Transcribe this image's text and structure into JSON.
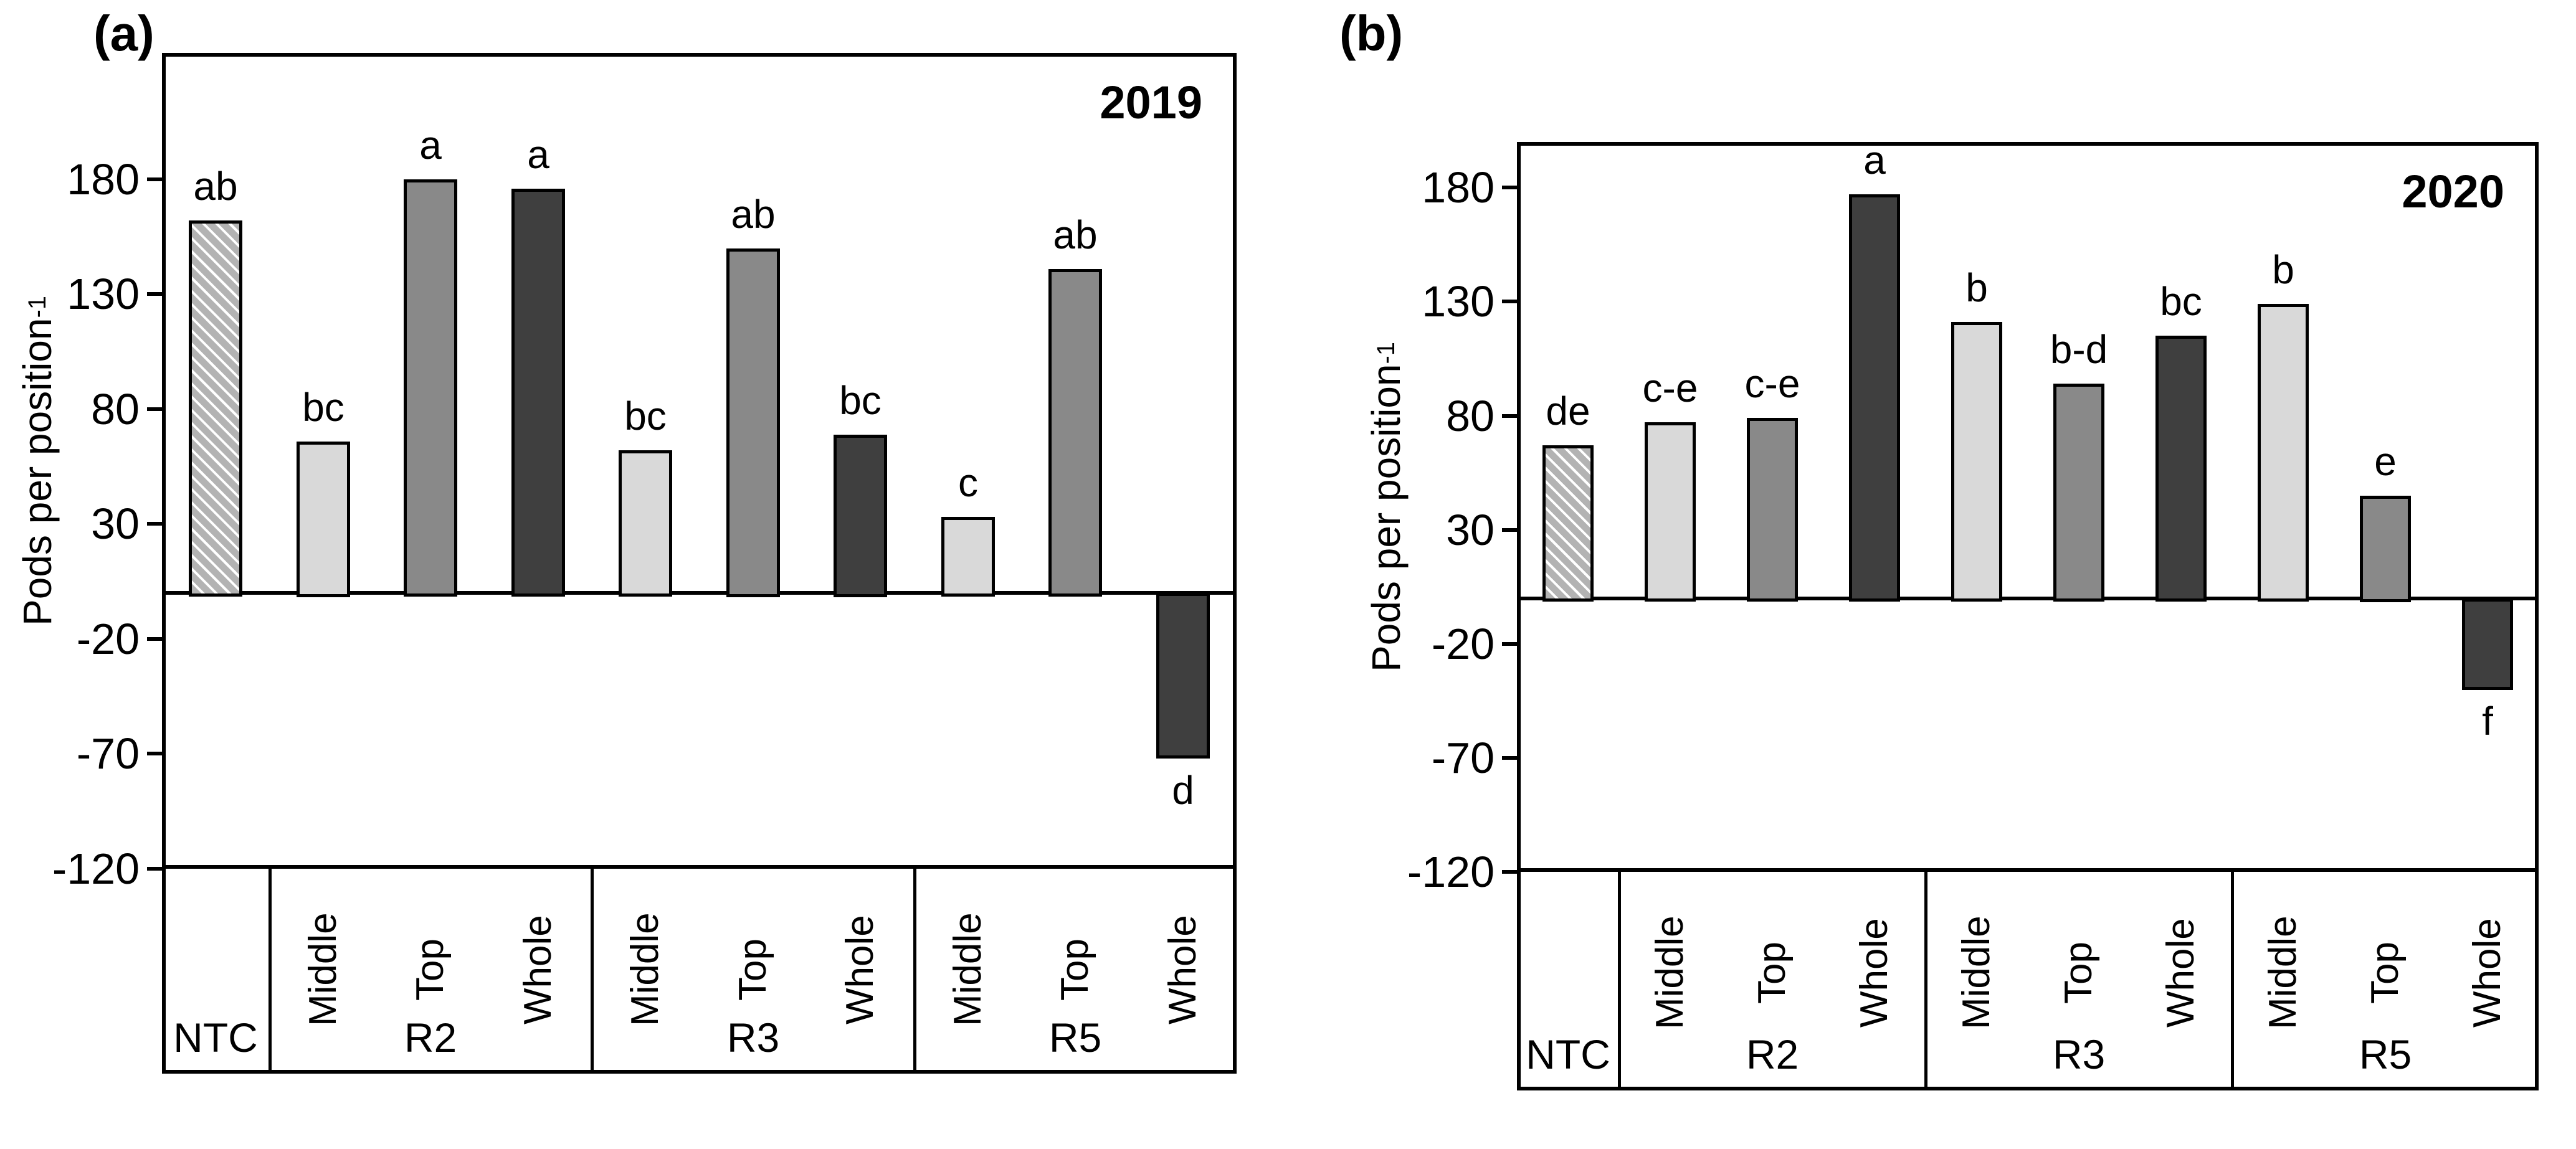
{
  "figure": {
    "description_labels": {
      "panel_a": "(a)",
      "panel_b": "(b)",
      "year_a": "2019",
      "year_b": "2020"
    },
    "colors": {
      "light": "#d9d9d9",
      "medium": "#898989",
      "dark": "#3f3f3f",
      "hatch_base": "#b3b3b3",
      "hatch_stripe": "#ffffff",
      "outline": "#000000"
    }
  },
  "chart_data": [
    {
      "type": "bar",
      "panel_label": "(a)",
      "title": "2019",
      "ylabel_main": "Pods per position",
      "ylabel_sup": "-1",
      "ylim": [
        -120,
        235
      ],
      "yticks": [
        180,
        130,
        80,
        30,
        -20,
        -70,
        -120
      ],
      "grid": "off",
      "legend": "none",
      "group_labels": [
        "NTC",
        "R2",
        "R3",
        "R5"
      ],
      "bars_per_group": [
        1,
        3,
        3,
        3
      ],
      "categories": [
        "NTC",
        "R2 Middle",
        "R2 Top",
        "R2 Whole",
        "R3 Middle",
        "R3 Top",
        "R3 Whole",
        "R5 Middle",
        "R5 Top",
        "R5 Whole"
      ],
      "sublabels": [
        "",
        "Middle",
        "Top",
        "Whole",
        "Middle",
        "Top",
        "Whole",
        "Middle",
        "Top",
        "Whole"
      ],
      "values": [
        162,
        66,
        180,
        176,
        62,
        150,
        69,
        33,
        141,
        -72
      ],
      "sig_letters": [
        "ab",
        "bc",
        "a",
        "a",
        "bc",
        "ab",
        "bc",
        "c",
        "ab",
        "d"
      ],
      "fills": [
        "hatched",
        "light",
        "medium",
        "dark",
        "light",
        "medium",
        "dark",
        "light",
        "medium",
        "dark"
      ]
    },
    {
      "type": "bar",
      "panel_label": "(b)",
      "title": "2020",
      "ylabel_main": "Pods per position",
      "ylabel_sup": "-1",
      "ylim": [
        -120,
        200
      ],
      "yticks": [
        180,
        130,
        80,
        30,
        -20,
        -70,
        -120
      ],
      "grid": "off",
      "legend": "none",
      "group_labels": [
        "NTC",
        "R2",
        "R3",
        "R5"
      ],
      "bars_per_group": [
        1,
        3,
        3,
        3
      ],
      "categories": [
        "NTC",
        "R2 Middle",
        "R2 Top",
        "R2 Whole",
        "R3 Middle",
        "R3 Top",
        "R3 Whole",
        "R5 Middle",
        "R5 Top",
        "R5 Whole"
      ],
      "sublabels": [
        "",
        "Middle",
        "Top",
        "Whole",
        "Middle",
        "Top",
        "Whole",
        "Middle",
        "Top",
        "Whole"
      ],
      "values": [
        67,
        77,
        79,
        177,
        121,
        94,
        115,
        129,
        45,
        -40
      ],
      "sig_letters": [
        "de",
        "c-e",
        "c-e",
        "a",
        "b",
        "b-d",
        "bc",
        "b",
        "e",
        "f"
      ],
      "fills": [
        "hatched",
        "light",
        "medium",
        "dark",
        "light",
        "medium",
        "dark",
        "light",
        "medium",
        "dark"
      ]
    }
  ]
}
